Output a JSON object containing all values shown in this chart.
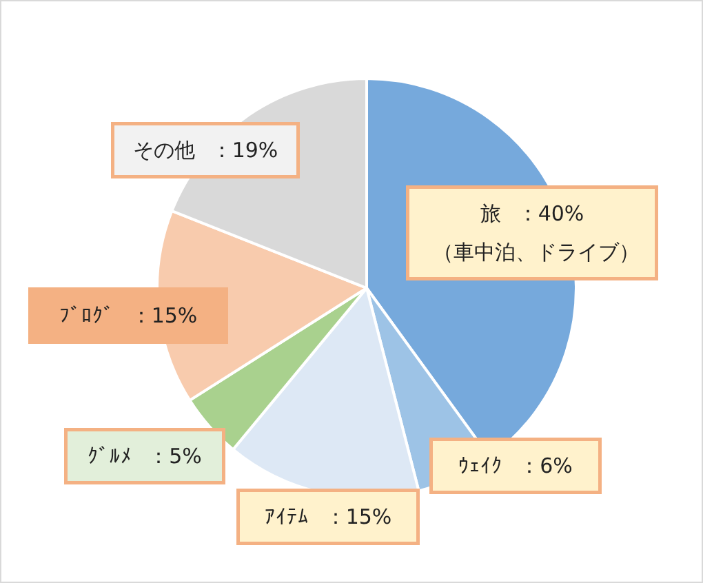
{
  "chart_data": {
    "type": "pie",
    "categories": [
      "旅",
      "ｳｪｲｸ",
      "ｱｲﾃﾑ",
      "ｸﾞﾙﾒ",
      "ﾌﾞﾛｸﾞ",
      "その他"
    ],
    "values": [
      40,
      6,
      15,
      5,
      15,
      19
    ],
    "colors": [
      "#76a9dc",
      "#9dc3e6",
      "#dde8f5",
      "#a9d18e",
      "#f8cbad",
      "#d9d9d9"
    ],
    "value_labels": [
      "：40%",
      "：6%",
      "：15%",
      "：5%",
      "：15%",
      "：19%"
    ],
    "annotations": [
      {
        "text": "（車中泊、ドライブ）",
        "x": "旅"
      }
    ],
    "legend": false
  }
}
